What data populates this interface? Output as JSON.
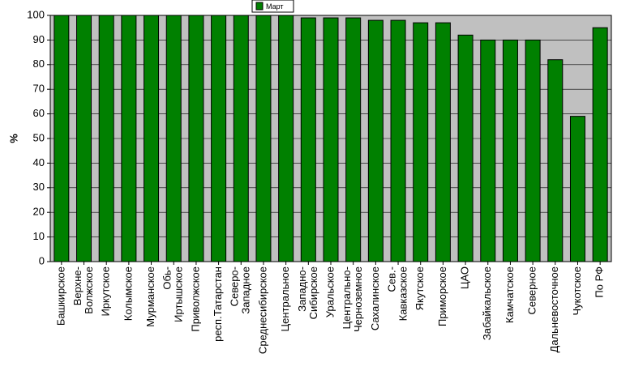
{
  "chart_data": {
    "type": "bar",
    "ylabel": "%",
    "ylim": [
      0,
      100
    ],
    "yticks": [
      0,
      10,
      20,
      30,
      40,
      50,
      60,
      70,
      80,
      90,
      100
    ],
    "grid": true,
    "legend_position": "top-center",
    "series": [
      {
        "name": "Март",
        "color": "#008000",
        "values": [
          100,
          100,
          100,
          100,
          100,
          100,
          100,
          100,
          100,
          100,
          100,
          99,
          99,
          99,
          98,
          98,
          97,
          97,
          92,
          90,
          90,
          90,
          82,
          59,
          95
        ]
      }
    ],
    "categories": [
      [
        "Башкирское"
      ],
      [
        "Верхне-",
        "Волжское"
      ],
      [
        "Иркутское"
      ],
      [
        "Колымское"
      ],
      [
        "Мурманское"
      ],
      [
        "Обь-",
        "Иртышское"
      ],
      [
        "Приволжское"
      ],
      [
        "респ.Татарстан"
      ],
      [
        "Северо-",
        "Западное"
      ],
      [
        "Среднесибирское"
      ],
      [
        "Центральное"
      ],
      [
        "Западно-",
        "Сибирское"
      ],
      [
        "Уральское"
      ],
      [
        "Центрально-",
        "Черноземное"
      ],
      [
        "Сахалинское"
      ],
      [
        "Сев.-",
        "Кавказское"
      ],
      [
        "Якутское"
      ],
      [
        "Приморское"
      ],
      [
        "ЦАО"
      ],
      [
        "Забайкальское"
      ],
      [
        "Камчатское"
      ],
      [
        "Северное"
      ],
      [
        "Дальневосточное"
      ],
      [
        "Чукотское"
      ],
      [
        "По РФ"
      ]
    ]
  }
}
